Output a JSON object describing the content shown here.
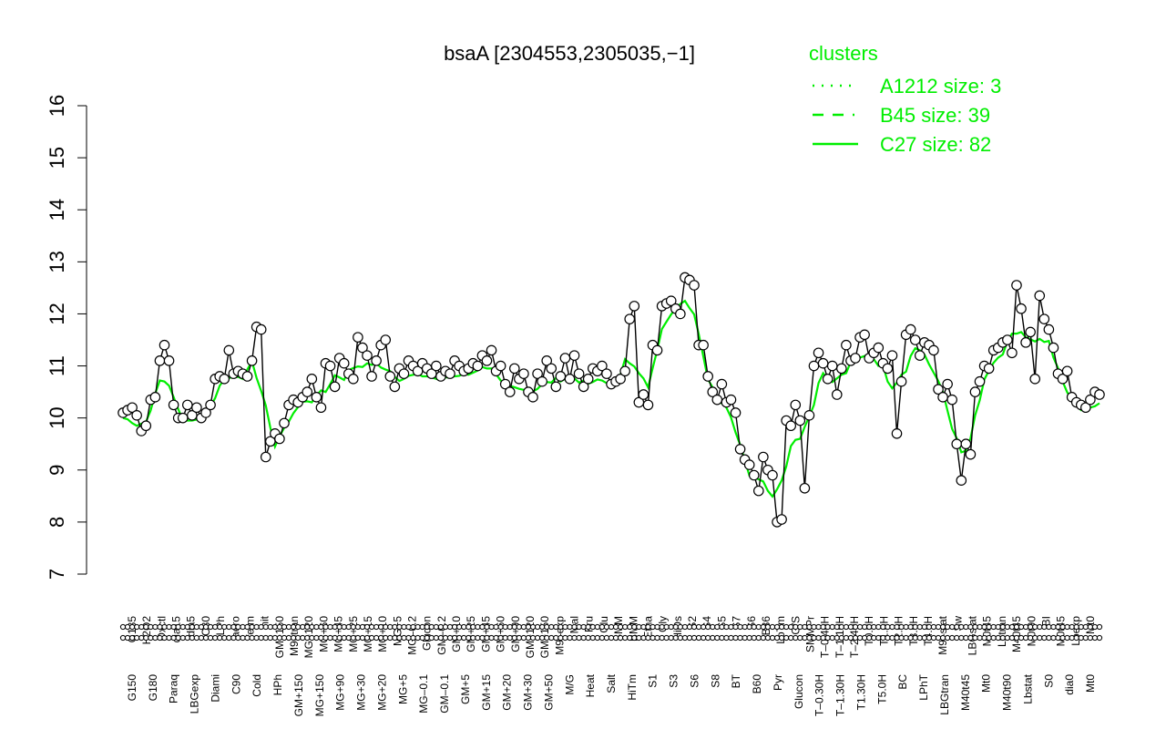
{
  "chart_data": {
    "type": "line",
    "title": "bsaA [2304553,2305035,−1]",
    "xlabel": "",
    "ylabel": "",
    "ylim": [
      7,
      16
    ],
    "yticks": [
      7,
      8,
      9,
      10,
      11,
      12,
      13,
      14,
      15,
      16
    ],
    "grid": false,
    "legend": {
      "placement": "top-right",
      "title": "clusters",
      "color": "#00ee00",
      "entries": [
        {
          "label": "A1212 size: 3",
          "style": "dotted"
        },
        {
          "label": "B45 size: 39",
          "style": "dashed"
        },
        {
          "label": "C27 size: 82",
          "style": "solid"
        }
      ]
    },
    "x_tick_labels_upper": [
      "G135",
      "H2O2",
      "Oxctl",
      "dia15",
      "dia5",
      "C30",
      "LPh",
      "aero",
      "ferm",
      "nit",
      "GM+150",
      "M9–tran",
      "MG+120",
      "MG+60",
      "MG+45",
      "MG+25",
      "MG+15",
      "MG+10",
      "MG+5",
      "MG–0.2",
      "Glucon",
      "GM–0.2",
      "GM+10",
      "GM+25",
      "GM+45",
      "GM+60",
      "GM+90",
      "GM+120",
      "GM+150",
      "M9–exp",
      "Mal",
      "Fru",
      "Glu",
      "SMM",
      "BMM",
      "Etha",
      "Gly",
      "HiOs",
      "S2",
      "S4",
      "S5",
      "S7",
      "S6",
      "B36",
      "LoTm",
      "G/S",
      "SMMPr",
      "T–0.40H",
      "T–1.10H",
      "T–2.40H",
      "T0.0H",
      "T1.0H",
      "T2.0H",
      "T3.0H",
      "T4.0H",
      "M9–stat",
      "Sw",
      "LBGstat",
      "M0t45",
      "Lbtran",
      "M40t45",
      "M0t90",
      "BI",
      "M0t45",
      "Lbexp",
      "Mt0"
    ],
    "x_tick_labels_lower": [
      "G150",
      "G180",
      "Paraq",
      "LBGexp",
      "Diami",
      "C90",
      "Cold",
      "HPh",
      "GM+150",
      "MG+150",
      "MG+90",
      "MG+30",
      "MG+20",
      "MG+5",
      "MG–0.1",
      "GM–0.1",
      "GM+5",
      "GM+15",
      "GM+20",
      "GM+30",
      "GM+50",
      "M/G",
      "Heat",
      "Salt",
      "HiTm",
      "S1",
      "S3",
      "S6",
      "S8",
      "BT",
      "B60",
      "Pyr",
      "Glucon",
      "T–0.30H",
      "T–1.30H",
      "T1.30H",
      "T5.0H",
      "BC",
      "LPhT",
      "LBGtran",
      "M40t45",
      "Mt0",
      "M40t90",
      "Lbstat",
      "S0",
      "dia0",
      "Mt0"
    ],
    "series": [
      {
        "values": [
          10.1,
          10.15,
          10.2,
          10.05,
          9.75,
          9.85,
          10.35,
          10.4,
          11.1,
          11.4,
          11.1,
          10.25,
          10.0,
          10.0,
          10.25,
          10.05,
          10.2,
          10.0,
          10.1,
          10.25,
          10.75,
          10.8,
          10.75,
          11.3,
          10.85,
          10.9,
          10.85,
          10.8,
          11.1,
          11.75,
          11.7,
          9.25,
          9.55,
          9.7,
          9.6,
          9.9,
          10.25,
          10.35,
          10.3,
          10.4,
          10.5,
          10.75,
          10.4,
          10.2,
          11.05,
          11.0,
          10.6,
          11.15,
          11.05,
          10.85,
          10.75,
          11.55,
          11.35,
          11.2,
          10.8,
          11.1,
          11.4,
          11.5,
          10.8,
          10.6,
          10.95,
          10.85,
          11.1,
          11.0,
          10.9,
          11.05,
          10.95,
          10.85,
          11.0,
          10.8,
          10.9,
          10.85,
          11.1,
          11.0,
          10.9,
          10.95,
          11.05,
          11.0,
          11.2,
          11.1,
          11.3,
          10.9,
          11.0,
          10.65,
          10.5,
          10.95,
          10.75,
          10.85,
          10.5,
          10.4,
          10.85,
          10.7,
          11.1,
          10.95,
          10.6,
          10.8,
          11.15,
          10.75,
          11.2,
          10.85,
          10.6,
          10.75,
          10.95,
          10.9,
          11.0,
          10.85,
          10.65,
          10.7,
          10.75,
          10.9,
          11.9,
          12.15,
          10.3,
          10.45,
          10.25,
          11.4,
          11.3,
          12.15,
          12.2,
          12.25,
          12.1,
          12.0,
          12.7,
          12.65,
          12.55,
          11.4,
          11.4,
          10.8,
          10.5,
          10.35,
          10.65,
          10.3,
          10.35,
          10.1,
          9.4,
          9.2,
          9.1,
          8.9,
          8.6,
          9.25,
          9.0,
          8.9,
          8.0,
          8.05,
          9.95,
          9.85,
          10.25,
          9.95,
          8.65,
          10.05,
          11.0,
          11.25,
          11.05,
          10.75,
          11.0,
          10.45,
          10.95,
          11.4,
          11.1,
          11.15,
          11.55,
          11.6,
          11.15,
          11.25,
          11.35,
          11.05,
          10.95,
          11.2,
          9.7,
          10.7,
          11.6,
          11.7,
          11.5,
          11.2,
          11.45,
          11.4,
          11.3,
          10.55,
          10.4,
          10.65,
          10.35,
          9.5,
          8.8,
          9.5,
          9.3,
          10.5,
          10.7,
          11.0,
          10.95,
          11.3,
          11.35,
          11.45,
          11.5,
          11.25,
          12.55,
          12.1,
          11.45,
          11.65,
          10.75,
          12.35,
          11.9,
          11.7,
          11.35,
          10.85,
          10.75,
          10.9,
          10.4,
          10.3,
          10.25,
          10.2,
          10.35,
          10.5,
          10.45
        ]
      }
    ]
  }
}
